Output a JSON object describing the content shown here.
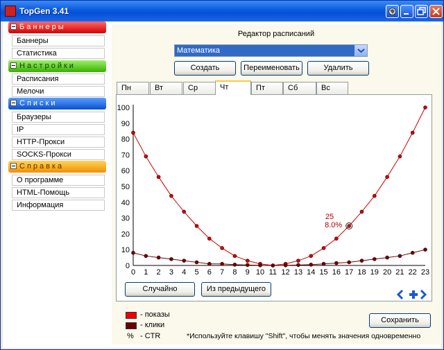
{
  "window": {
    "title": "TopGen 3.41"
  },
  "sidebar": {
    "sections": [
      {
        "title": "Баннеры",
        "items": [
          "Баннеры",
          "Статистика"
        ]
      },
      {
        "title": "Настройки",
        "items": [
          "Расписания",
          "Мелочи"
        ]
      },
      {
        "title": "Списки",
        "items": [
          "Браузеры",
          "IP",
          "HTTP-Прокси",
          "SOCKS-Прокси"
        ]
      },
      {
        "title": "Справка",
        "items": [
          "О программе",
          "HTML-Помощь",
          "Информация"
        ]
      }
    ]
  },
  "editor": {
    "title": "Редактор расписаний",
    "schedule_select": "Математика",
    "buttons": {
      "create": "Создать",
      "rename": "Переименовать",
      "delete": "Удалить"
    },
    "tabs": [
      "Пн",
      "Вт",
      "Ср",
      "Чт",
      "Пт",
      "Сб",
      "Вс"
    ],
    "active_tab": "Чт",
    "actions": {
      "random": "Случайно",
      "from_previous": "Из предыдущего",
      "save": "Сохранить"
    }
  },
  "chart_data": {
    "type": "line",
    "x": [
      0,
      1,
      2,
      3,
      4,
      5,
      6,
      7,
      8,
      9,
      10,
      11,
      12,
      13,
      14,
      15,
      16,
      17,
      18,
      19,
      20,
      21,
      22,
      23
    ],
    "ylim": [
      0,
      100
    ],
    "yticks": [
      0,
      10,
      20,
      30,
      40,
      50,
      60,
      70,
      80,
      90,
      100
    ],
    "series": [
      {
        "name": "показы",
        "color": "#cc0000",
        "values": [
          84,
          69,
          56,
          44,
          34,
          25,
          17,
          11,
          6,
          3,
          1,
          0,
          1,
          3,
          6,
          11,
          17,
          25,
          34,
          44,
          56,
          69,
          84,
          100
        ]
      },
      {
        "name": "клики",
        "color": "#6b0000",
        "values": [
          8,
          6,
          5,
          4,
          3,
          2,
          1,
          1,
          0.5,
          0.3,
          0.1,
          0,
          0.1,
          0.3,
          0.5,
          1,
          1.5,
          2,
          3,
          4,
          5,
          6,
          8,
          10
        ]
      }
    ],
    "annotation": {
      "x": 17,
      "value": "25",
      "ctr": "8.0%"
    }
  },
  "legend": [
    {
      "symbol": "",
      "text": "- показы",
      "color": "#ee0000"
    },
    {
      "symbol": "",
      "text": "- клики",
      "color": "#6b0000"
    },
    {
      "symbol": "%",
      "text": "- CTR",
      "color": ""
    }
  ],
  "hint": "*Используйте клавишу \"Shift\", чтобы менять значения одновременно"
}
